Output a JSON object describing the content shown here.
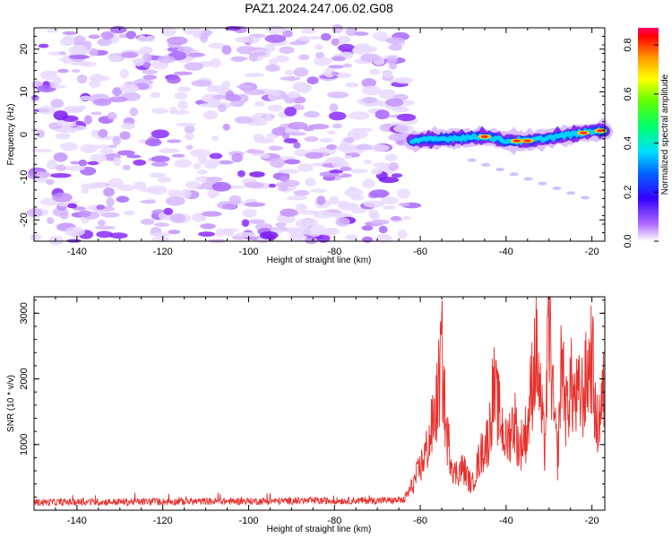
{
  "title": "PAZ1.2024.247.06.02.G08",
  "colors": {
    "snr_line": "#e8302c",
    "spectrogram_noise": "#8c2cff",
    "background": "#ffffff"
  },
  "chart_data": [
    {
      "type": "heatmap",
      "xlabel": "Height of straight line (km)",
      "ylabel": "Frequency (Hz)",
      "xlim": [
        -150,
        -17
      ],
      "ylim": [
        -25,
        25
      ],
      "xticks": [
        -140,
        -120,
        -100,
        -80,
        -60,
        -40,
        -20
      ],
      "yticks": [
        -20,
        -10,
        0,
        10,
        20
      ],
      "colorbar": {
        "label": "Normalized spectral amplitude",
        "range": [
          0.0,
          0.87
        ],
        "ticks": [
          0.0,
          0.2,
          0.4,
          0.6,
          0.8
        ],
        "colormap": "rainbow (violet to red)"
      },
      "features": {
        "noise_region_x": [
          -150,
          -64
        ],
        "signal_region_x": [
          -64,
          -17
        ],
        "signal_track": [
          {
            "x": -62,
            "y": -1.5
          },
          {
            "x": -55,
            "y": -1
          },
          {
            "x": -45,
            "y": -0.5
          },
          {
            "x": -40,
            "y": -1.5
          },
          {
            "x": -35,
            "y": -1.5
          },
          {
            "x": -25,
            "y": 0
          },
          {
            "x": -17,
            "y": 1
          }
        ]
      }
    },
    {
      "type": "line",
      "xlabel": "Height of straight line (km)",
      "ylabel": "SNR (10 * v/v)",
      "xlim": [
        -150,
        -17
      ],
      "ylim": [
        0,
        3250
      ],
      "xticks": [
        -140,
        -120,
        -100,
        -80,
        -60,
        -40,
        -20
      ],
      "yticks": [
        1000,
        2000,
        3000
      ],
      "series": [
        {
          "anchors": [
            [
              -150,
              120
            ],
            [
              -64,
              150
            ],
            [
              -62,
              380
            ],
            [
              -60,
              700
            ],
            [
              -58,
              1100
            ],
            [
              -56,
              1800
            ],
            [
              -55,
              2600
            ],
            [
              -54,
              1300
            ],
            [
              -52,
              600
            ],
            [
              -50,
              700
            ],
            [
              -48,
              400
            ],
            [
              -46,
              900
            ],
            [
              -44,
              1200
            ],
            [
              -43,
              2000
            ],
            [
              -42,
              1700
            ],
            [
              -40,
              1100
            ],
            [
              -38,
              1500
            ],
            [
              -37,
              1000
            ],
            [
              -35,
              1350
            ],
            [
              -34,
              2100
            ],
            [
              -33,
              2700
            ],
            [
              -32,
              1800
            ],
            [
              -31,
              1000
            ],
            [
              -30,
              3200
            ],
            [
              -29,
              1700
            ],
            [
              -28,
              800
            ],
            [
              -27,
              2600
            ],
            [
              -26,
              1600
            ],
            [
              -25,
              2100
            ],
            [
              -24,
              1800
            ],
            [
              -22,
              1900
            ],
            [
              -20,
              2600
            ],
            [
              -19,
              1300
            ],
            [
              -17,
              2000
            ]
          ]
        }
      ]
    }
  ]
}
